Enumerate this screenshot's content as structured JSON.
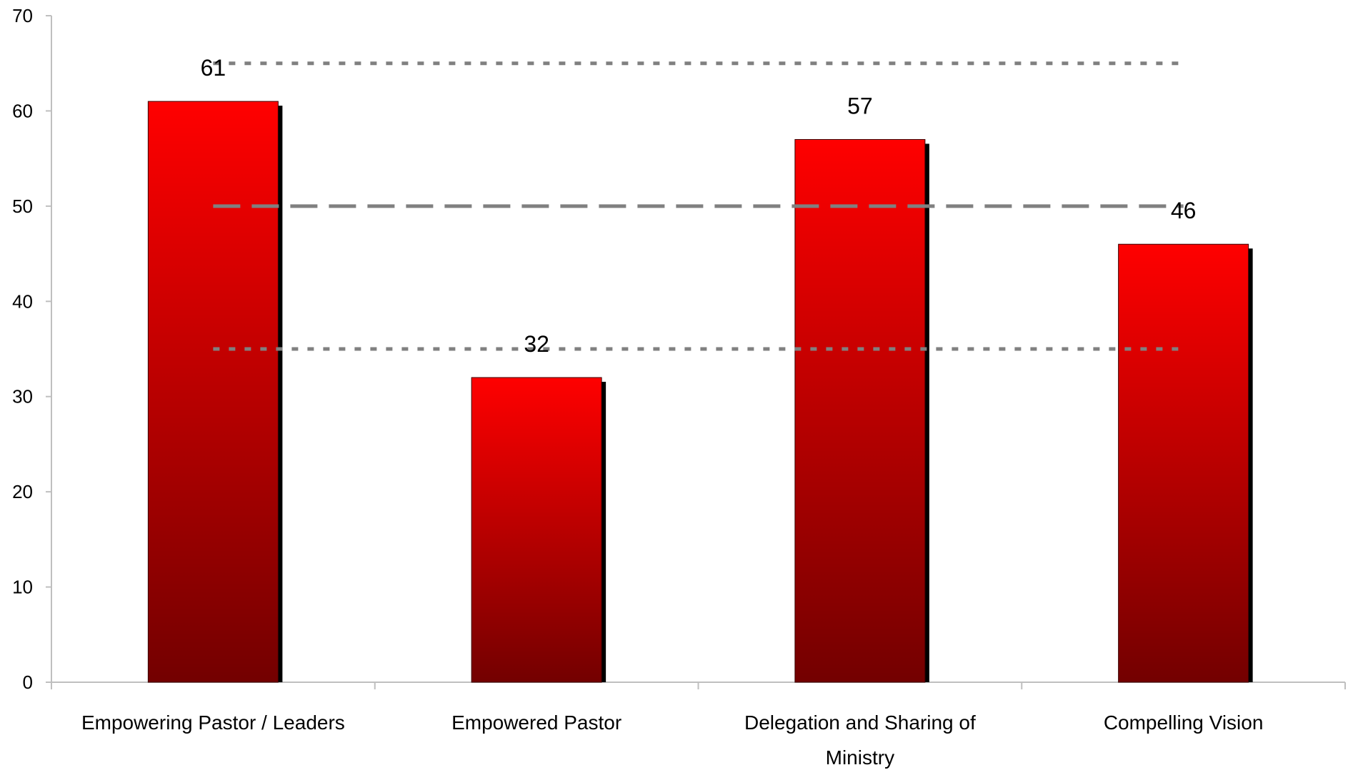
{
  "chart_data": {
    "type": "bar",
    "title": "",
    "xlabel": "",
    "ylabel": "",
    "categories": [
      [
        "Empowering Pastor / Leaders"
      ],
      [
        "Empowered Pastor"
      ],
      [
        "Delegation and Sharing of",
        "Ministry"
      ],
      [
        "Compelling Vision"
      ]
    ],
    "values": [
      61,
      32,
      57,
      46
    ],
    "data_labels": [
      "61",
      "32",
      "57",
      "46"
    ],
    "ylim": [
      0,
      70
    ],
    "yticks": [
      0,
      10,
      20,
      30,
      40,
      50,
      60,
      70
    ],
    "grid": false,
    "legend": "none",
    "reference_lines": [
      {
        "value": 65,
        "style": "dotted"
      },
      {
        "value": 50,
        "style": "dashed"
      },
      {
        "value": 35,
        "style": "dotted"
      }
    ],
    "colors": {
      "bar_top": "#ff0000",
      "bar_bottom": "#730000",
      "bar_shadow": "#000000",
      "reference_line": "#808080",
      "axis": "#bfbfbf"
    }
  }
}
